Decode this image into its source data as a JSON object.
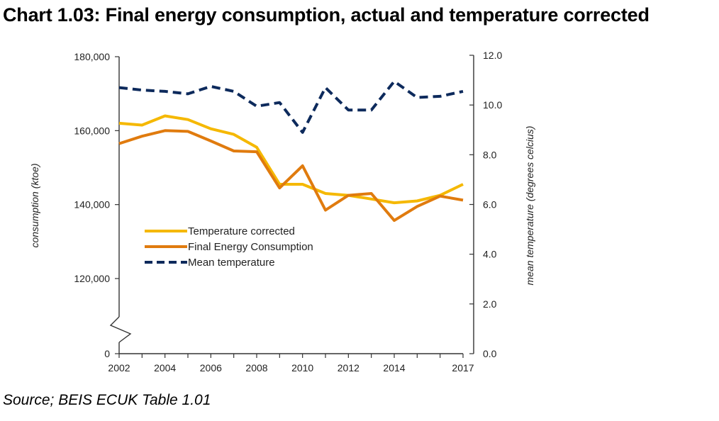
{
  "title": "Chart 1.03: Final energy consumption, actual and temperature corrected",
  "source": "Source; BEIS ECUK Table 1.01",
  "chart_data": {
    "type": "line",
    "x": [
      2002,
      2003,
      2004,
      2005,
      2006,
      2007,
      2008,
      2009,
      2010,
      2011,
      2012,
      2013,
      2014,
      2015,
      2016,
      2017
    ],
    "x_tick_labels": [
      "2002",
      "2004",
      "2006",
      "2008",
      "2010",
      "2012",
      "2014",
      "2017"
    ],
    "y_left_tick_labels": [
      "180,000",
      "160,000",
      "140,000",
      "120,000",
      "0"
    ],
    "y_right_tick_labels": [
      "12.0",
      "10.0",
      "8.0",
      "6.0",
      "4.0",
      "2.0",
      "0.0"
    ],
    "ylabel_left": "consumption (ktoe)",
    "ylabel_right": "mean temperature (degrees celcius)",
    "ylim_left": [
      0,
      180000
    ],
    "ylim_left_visible": [
      120000,
      180000
    ],
    "ylim_right": [
      0,
      12
    ],
    "axis_break": "left",
    "legend_position": "center-left",
    "series": [
      {
        "name": "Temperature corrected",
        "axis": "left",
        "color": "#f5b800",
        "style": "solid",
        "values": [
          162000,
          161500,
          164000,
          163000,
          160500,
          159000,
          155500,
          145500,
          145500,
          143000,
          142500,
          141500,
          140500,
          141000,
          142500,
          145500
        ]
      },
      {
        "name": "Final Energy Consumption",
        "axis": "left",
        "color": "#e07b0e",
        "style": "solid",
        "values": [
          156500,
          158500,
          160000,
          159800,
          157200,
          154500,
          154300,
          144500,
          150500,
          138500,
          142500,
          143000,
          135700,
          139500,
          142300,
          141200
        ]
      },
      {
        "name": "Mean temperature",
        "axis": "right",
        "color": "#0d2a5c",
        "style": "dashed",
        "values": [
          10.7,
          10.6,
          10.55,
          10.45,
          10.75,
          10.55,
          9.95,
          10.1,
          8.9,
          10.7,
          9.8,
          9.8,
          10.95,
          10.3,
          10.35,
          10.55
        ]
      }
    ]
  }
}
